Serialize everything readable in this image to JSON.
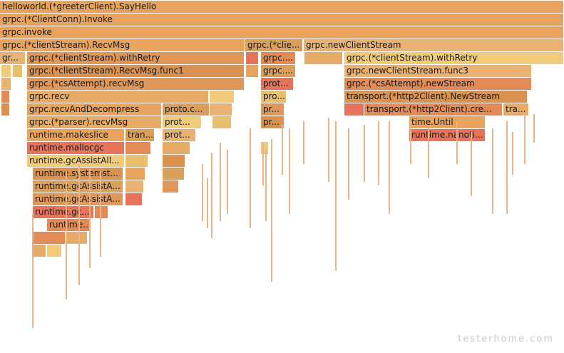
{
  "watermark": "testerhome.com",
  "palette": [
    "#e8a35d",
    "#e0975a",
    "#e6ab66",
    "#d9924f",
    "#eab272",
    "#e28b57",
    "#e7c06f",
    "#d8a05a",
    "#e6735a",
    "#f0cc7a"
  ],
  "frames": [
    {
      "name": "helloworld.(*greeterClient).SayHello",
      "full": "helloworld.(*greeterClient).SayHello",
      "depth": 0,
      "start": 0,
      "width": 100
    },
    {
      "name": "grpc.(*ClientConn).Invoke",
      "full": "grpc.(*ClientConn).Invoke",
      "depth": 1,
      "start": 0,
      "width": 100
    },
    {
      "name": "grpc.invoke",
      "full": "grpc.invoke",
      "depth": 2,
      "start": 0,
      "width": 100
    },
    {
      "name": "grpc.(*clientStream).RecvMsg",
      "full": "grpc.(*clientStream).RecvMsg",
      "depth": 3,
      "start": 0,
      "width": 43.5
    },
    {
      "name": "grpc.(*clie...",
      "full": "grpc.(*clientStream).SendMsg",
      "depth": 3,
      "start": 43.5,
      "width": 10.2
    },
    {
      "name": "grpc.newClientStream",
      "full": "grpc.newClientStream",
      "depth": 3,
      "start": 53.9,
      "width": 46.1
    },
    {
      "name": "gr...",
      "full": "grpc.(*csAttempt).recvMsg",
      "depth": 4,
      "start": 0,
      "width": 4.6
    },
    {
      "name": "grpc.(*clientStream).withRetry",
      "full": "grpc.(*clientStream).withRetry",
      "depth": 4,
      "start": 4.8,
      "width": 38.5
    },
    {
      "name": "",
      "full": "",
      "depth": 4,
      "start": 43.6,
      "width": 2.3
    },
    {
      "name": "grpc....",
      "full": "grpc.(*clientStream).withRetry",
      "depth": 4,
      "start": 46.3,
      "width": 6.2
    },
    {
      "name": "",
      "full": "",
      "depth": 4,
      "start": 54.0,
      "width": 6.8
    },
    {
      "name": "grpc.(*clientStream).withRetry",
      "full": "grpc.(*clientStream).withRetry",
      "depth": 4,
      "start": 61.0,
      "width": 39.0
    },
    {
      "name": "",
      "full": "",
      "depth": 5,
      "start": 0.3,
      "width": 1.8
    },
    {
      "name": "",
      "full": "",
      "depth": 5,
      "start": 2.3,
      "width": 1.8
    },
    {
      "name": "grpc.(*clientStream).RecvMsg.func1",
      "full": "grpc.(*clientStream).RecvMsg.func1",
      "depth": 5,
      "start": 4.8,
      "width": 38.5
    },
    {
      "name": "",
      "full": "",
      "depth": 5,
      "start": 43.6,
      "width": 2.3
    },
    {
      "name": "grpc....",
      "full": "grpc.(*clientStream).SendMsg.func2",
      "depth": 5,
      "start": 46.3,
      "width": 6.2
    },
    {
      "name": "grpc.newClientStream.func3",
      "full": "grpc.newClientStream.func3",
      "depth": 5,
      "start": 61.0,
      "width": 33.2
    },
    {
      "name": "",
      "full": "",
      "depth": 6,
      "start": 0.3,
      "width": 1.8
    },
    {
      "name": "grpc.(*csAttempt).recvMsg",
      "full": "grpc.(*csAttempt).recvMsg",
      "depth": 6,
      "start": 4.8,
      "width": 38.5
    },
    {
      "name": "prot...",
      "full": "proto.Marshal",
      "depth": 6,
      "start": 46.3,
      "width": 5.8
    },
    {
      "name": "grpc.(*csAttempt).newStream",
      "full": "grpc.(*csAttempt).newStream",
      "depth": 6,
      "start": 61.0,
      "width": 33.2
    },
    {
      "name": "",
      "full": "",
      "depth": 7,
      "start": 0.3,
      "width": 1.5
    },
    {
      "name": "grpc.recv",
      "full": "grpc.recv",
      "depth": 7,
      "start": 4.8,
      "width": 32.3
    },
    {
      "name": "",
      "full": "",
      "depth": 7,
      "start": 37.2,
      "width": 4.4
    },
    {
      "name": "pro...",
      "full": "proto.Marshal",
      "depth": 7,
      "start": 46.3,
      "width": 4.5
    },
    {
      "name": "transport.(*http2Client).NewStream",
      "full": "transport.(*http2Client).NewStream",
      "depth": 7,
      "start": 61.0,
      "width": 32.5
    },
    {
      "name": "",
      "full": "",
      "depth": 8,
      "start": 0.3,
      "width": 1.5
    },
    {
      "name": "grpc.recvAndDecompress",
      "full": "grpc.recvAndDecompress",
      "depth": 8,
      "start": 4.8,
      "width": 23.9
    },
    {
      "name": "proto.c...",
      "full": "proto.codec.Unmarshal",
      "depth": 8,
      "start": 28.8,
      "width": 8.3
    },
    {
      "name": "",
      "full": "",
      "depth": 8,
      "start": 37.2,
      "width": 4.0
    },
    {
      "name": "pr...",
      "full": "proto.Marshal",
      "depth": 8,
      "start": 46.3,
      "width": 4.2
    },
    {
      "name": "",
      "full": "",
      "depth": 8,
      "start": 61.0,
      "width": 3.5
    },
    {
      "name": "transport.(*http2Client).cre...",
      "full": "transport.(*http2Client).createHeaderFields",
      "depth": 8,
      "start": 64.6,
      "width": 24.5
    },
    {
      "name": "tra...",
      "full": "transport.(*http2Client).getTrAuthData",
      "depth": 8,
      "start": 89.3,
      "width": 4.6
    },
    {
      "name": "grpc.(*parser).recvMsg",
      "full": "grpc.(*parser).recvMsg",
      "depth": 9,
      "start": 4.8,
      "width": 23.9
    },
    {
      "name": "prot...",
      "full": "proto.Unmarshal",
      "depth": 9,
      "start": 28.8,
      "width": 6.9
    },
    {
      "name": "",
      "full": "",
      "depth": 9,
      "start": 37.7,
      "width": 3.4
    },
    {
      "name": "pr...",
      "full": "proto.Marshal",
      "depth": 9,
      "start": 46.3,
      "width": 4.2
    },
    {
      "name": "time.Until",
      "full": "time.Until",
      "depth": 9,
      "start": 72.6,
      "width": 13.5
    },
    {
      "name": "runtime.makeslice",
      "full": "runtime.makeslice",
      "depth": 10,
      "start": 4.8,
      "width": 17.3
    },
    {
      "name": "tran...",
      "full": "transport.(*recvBufferReader).Read",
      "depth": 10,
      "start": 22.2,
      "width": 5.2
    },
    {
      "name": "prot...",
      "full": "proto.UnmarshalMerge",
      "depth": 10,
      "start": 28.8,
      "width": 6.0
    },
    {
      "name": "time.Until",
      "full": "time.Until",
      "depth": 10,
      "start": 72.6,
      "width": 13.5
    },
    {
      "name": "runtime.nanoti...",
      "full": "runtime.nanotime",
      "depth": 10,
      "start": 72.6,
      "width": 13.5
    },
    {
      "name": "runtime.mallocgc",
      "full": "runtime.mallocgc",
      "depth": 11,
      "start": 4.8,
      "width": 17.3
    },
    {
      "name": "",
      "full": "",
      "depth": 11,
      "start": 22.2,
      "width": 4.6
    },
    {
      "name": "",
      "full": "",
      "depth": 11,
      "start": 28.8,
      "width": 4.9
    },
    {
      "name": "",
      "full": "",
      "depth": 11,
      "start": 46.3,
      "width": 1.4
    },
    {
      "name": "runtime.gcAssistAll...",
      "full": "runtime.gcAssistAlloc",
      "depth": 12,
      "start": 4.8,
      "width": 17.3
    },
    {
      "name": "",
      "full": "",
      "depth": 12,
      "start": 22.2,
      "width": 4.0
    },
    {
      "name": "",
      "full": "",
      "depth": 12,
      "start": 28.8,
      "width": 4.0
    },
    {
      "name": "runtime.systemst...",
      "full": "runtime.systemstack",
      "depth": 13,
      "start": 5.8,
      "width": 16.0
    },
    {
      "name": "",
      "full": "",
      "depth": 13,
      "start": 22.2,
      "width": 3.5
    },
    {
      "name": "",
      "full": "",
      "depth": 13,
      "start": 28.8,
      "width": 3.9
    },
    {
      "name": "runtime.gcAssistA...",
      "full": "runtime.gcAssistAlloc.func1",
      "depth": 14,
      "start": 5.8,
      "width": 16.0
    },
    {
      "name": "",
      "full": "",
      "depth": 14,
      "start": 22.2,
      "width": 3.3
    },
    {
      "name": "",
      "full": "",
      "depth": 14,
      "start": 28.8,
      "width": 2.9
    },
    {
      "name": "runtime.gcAssistA...",
      "full": "runtime.gcAssistAlloc1",
      "depth": 15,
      "start": 5.8,
      "width": 16.0
    },
    {
      "name": "",
      "full": "",
      "depth": 15,
      "start": 22.2,
      "width": 3.0
    },
    {
      "name": "runtime.gc...",
      "full": "runtime.gcDrainN",
      "depth": 16,
      "start": 5.8,
      "width": 10.9
    },
    {
      "name": "",
      "full": "",
      "depth": 16,
      "start": 16.8,
      "width": 2.4
    },
    {
      "name": "runtime...",
      "full": "runtime.scanobject",
      "depth": 17,
      "start": 8.4,
      "width": 7.9
    },
    {
      "name": "",
      "full": "",
      "depth": 18,
      "start": 5.8,
      "width": 5.8
    },
    {
      "name": "",
      "full": "",
      "depth": 18,
      "start": 11.7,
      "width": 3.8
    },
    {
      "name": "",
      "full": "",
      "depth": 19,
      "start": 5.8,
      "width": 2.4
    },
    {
      "name": "",
      "full": "",
      "depth": 19,
      "start": 8.4,
      "width": 2.6
    }
  ]
}
